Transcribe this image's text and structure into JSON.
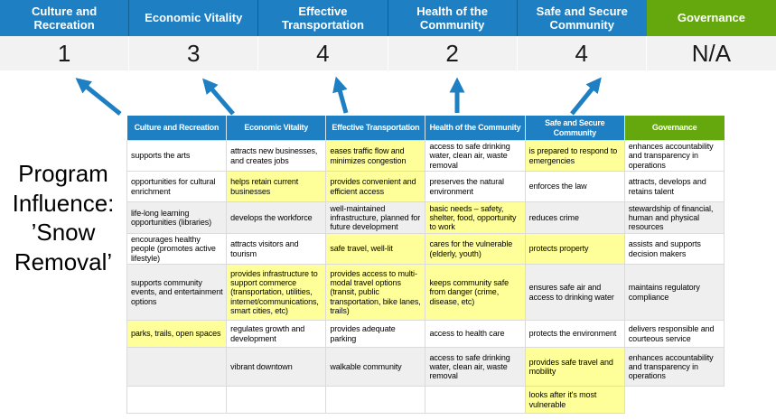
{
  "title": {
    "text": "Program Influence: ’Snow Removal’"
  },
  "colors": {
    "header_blue": "#1E7FC3",
    "header_green": "#65A80D",
    "highlight_yellow": "#FFFF99",
    "row_shade": "#EFEFEF",
    "score_band_bg": "#F2F2F2",
    "arrow_blue": "#1E7FC3"
  },
  "summary": {
    "columns": [
      {
        "label": "Culture and Recreation",
        "score": "1",
        "theme": "blue"
      },
      {
        "label": "Economic Vitality",
        "score": "3",
        "theme": "blue"
      },
      {
        "label": "Effective Transportation",
        "score": "4",
        "theme": "blue"
      },
      {
        "label": "Health of the Community",
        "score": "2",
        "theme": "blue"
      },
      {
        "label": "Safe and Secure Community",
        "score": "4",
        "theme": "blue"
      },
      {
        "label": "Governance",
        "score": "N/A",
        "theme": "green"
      }
    ]
  },
  "matrix": {
    "headers": [
      {
        "label": "Culture and Recreation",
        "theme": "blue"
      },
      {
        "label": "Economic Vitality",
        "theme": "blue"
      },
      {
        "label": "Effective Transportation",
        "theme": "blue"
      },
      {
        "label": "Health of the Community",
        "theme": "blue"
      },
      {
        "label": "Safe and Secure Community",
        "theme": "blue"
      },
      {
        "label": "Governance",
        "theme": "green"
      }
    ],
    "rows": [
      {
        "shaded": false,
        "cells": [
          {
            "text": "supports the arts",
            "hl": false
          },
          {
            "text": "attracts new businesses, and creates jobs",
            "hl": false
          },
          {
            "text": "eases traffic flow and minimizes congestion",
            "hl": true
          },
          {
            "text": "access to safe drinking water, clean air, waste removal",
            "hl": false
          },
          {
            "text": "is prepared to respond to emergencies",
            "hl": true
          },
          {
            "text": "enhances accountability and transparency in operations",
            "hl": false
          }
        ]
      },
      {
        "shaded": false,
        "cells": [
          {
            "text": "opportunities for cultural enrichment",
            "hl": false
          },
          {
            "text": "helps retain current businesses",
            "hl": true
          },
          {
            "text": "provides convenient and efficient access",
            "hl": true
          },
          {
            "text": "preserves the natural environment",
            "hl": false
          },
          {
            "text": "enforces the law",
            "hl": false
          },
          {
            "text": "attracts, develops and retains talent",
            "hl": false
          }
        ]
      },
      {
        "shaded": true,
        "cells": [
          {
            "text": "life-long learning opportunities (libraries)",
            "hl": false
          },
          {
            "text": "develops the workforce",
            "hl": false
          },
          {
            "text": "well-maintained infrastructure, planned for future development",
            "hl": false
          },
          {
            "text": "basic needs – safety, shelter, food, opportunity to work",
            "hl": true
          },
          {
            "text": "reduces crime",
            "hl": false
          },
          {
            "text": "stewardship of financial, human and physical resources",
            "hl": false
          }
        ]
      },
      {
        "shaded": false,
        "cells": [
          {
            "text": "encourages healthy people (promotes active lifestyle)",
            "hl": false
          },
          {
            "text": "attracts visitors and tourism",
            "hl": false
          },
          {
            "text": "safe travel, well-lit",
            "hl": true
          },
          {
            "text": "cares for the vulnerable (elderly, youth)",
            "hl": true
          },
          {
            "text": "protects property",
            "hl": true
          },
          {
            "text": "assists and supports decision makers",
            "hl": false
          }
        ]
      },
      {
        "shaded": true,
        "cells": [
          {
            "text": "supports community events, and entertainment options",
            "hl": false
          },
          {
            "text": "provides infrastructure to support commerce (transportation, utilities, internet/communications, smart cities, etc)",
            "hl": true
          },
          {
            "text": "provides access to multi-modal travel options (transit, public transportation, bike lanes, trails)",
            "hl": true
          },
          {
            "text": "keeps community safe from danger (crime, disease, etc)",
            "hl": true
          },
          {
            "text": "ensures safe air and access to drinking water",
            "hl": false
          },
          {
            "text": "maintains regulatory compliance",
            "hl": false
          }
        ]
      },
      {
        "shaded": false,
        "cells": [
          {
            "text": "parks, trails, open spaces",
            "hl": true
          },
          {
            "text": "regulates growth and development",
            "hl": false
          },
          {
            "text": "provides adequate parking",
            "hl": false
          },
          {
            "text": "access to health care",
            "hl": false
          },
          {
            "text": "protects the environment",
            "hl": false
          },
          {
            "text": "delivers responsible and courteous service",
            "hl": false
          }
        ]
      },
      {
        "shaded": true,
        "cells": [
          {
            "text": "",
            "hl": false
          },
          {
            "text": "vibrant downtown",
            "hl": false
          },
          {
            "text": "walkable community",
            "hl": false
          },
          {
            "text": "access to safe drinking water, clean air, waste removal",
            "hl": false
          },
          {
            "text": "provides safe travel and mobility",
            "hl": true
          },
          {
            "text": "enhances accountability and transparency in operations",
            "hl": false
          }
        ]
      },
      {
        "shaded": false,
        "cells": [
          {
            "text": "",
            "hl": false
          },
          {
            "text": "",
            "hl": false
          },
          {
            "text": "",
            "hl": false
          },
          {
            "text": "",
            "hl": false
          },
          {
            "text": "looks after it's most vulnerable",
            "hl": true
          },
          {
            "text": "",
            "hl": false,
            "ghost": true
          }
        ]
      }
    ]
  }
}
